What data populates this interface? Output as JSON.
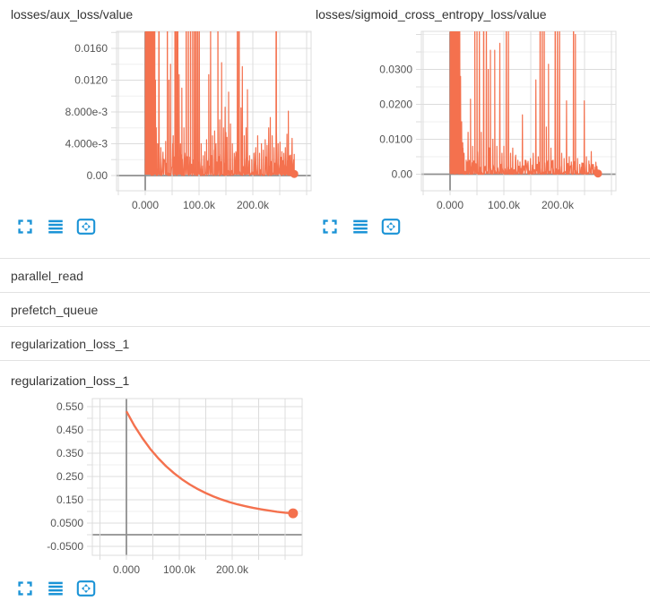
{
  "colors": {
    "line": "#f4714e",
    "icon": "#1a93d6",
    "grid_major": "#dcdcdc",
    "grid_minor": "#efefef",
    "axis_zero": "#8f8f8f",
    "tick_label": "#545454",
    "title": "#333333",
    "divider": "#e2e2e2"
  },
  "toolbar": {
    "buttons": [
      {
        "icon": "fullscreen-expand-icon"
      },
      {
        "icon": "runs-lines-icon"
      },
      {
        "icon": "fit-domain-to-data-icon"
      }
    ]
  },
  "sections": [
    {
      "label": "parallel_read",
      "state": "collapsed"
    },
    {
      "label": "prefetch_queue",
      "state": "collapsed"
    },
    {
      "label": "regularization_loss_1",
      "state": "expanded"
    }
  ],
  "chart_data": [
    {
      "type": "line",
      "title": "losses/aux_loss/value",
      "x_ticks": [
        {
          "v": 0,
          "label": "0.000"
        },
        {
          "v": 100000,
          "label": "100.0k"
        },
        {
          "v": 200000,
          "label": "200.0k"
        }
      ],
      "y_ticks": [
        {
          "v": 0,
          "label": "0.00"
        },
        {
          "v": 0.004,
          "label": "4.000e-3"
        },
        {
          "v": 0.008,
          "label": "8.000e-3"
        },
        {
          "v": 0.012,
          "label": "0.0120"
        },
        {
          "v": 0.016,
          "label": "0.0160"
        }
      ],
      "xlim": [
        -53333,
        308333
      ],
      "ylim": [
        -0.00192,
        0.01814
      ],
      "x_grid_step": 50000,
      "y_minor_step": 0.002,
      "grid": true,
      "legend": "none",
      "seed": 7,
      "noise_step": 1000,
      "noise_base": 0.003,
      "line_width": 1.2,
      "end_dot": {
        "x": 277000,
        "y": 0.0002,
        "r": 4.5
      },
      "spikes": [
        [
          800,
          0.19
        ],
        [
          1600,
          0.08
        ],
        [
          2600,
          0.22
        ],
        [
          3600,
          0.12
        ],
        [
          4800,
          0.3
        ],
        [
          6000,
          0.09
        ],
        [
          7200,
          0.25
        ],
        [
          8400,
          0.15
        ],
        [
          9600,
          0.28
        ],
        [
          10800,
          0.07
        ],
        [
          12000,
          0.18
        ],
        [
          13400,
          0.05
        ],
        [
          14800,
          0.1
        ],
        [
          16200,
          0.04
        ],
        [
          17600,
          0.028
        ],
        [
          19000,
          0.012
        ],
        [
          20500,
          0.006
        ],
        [
          23000,
          0.004
        ],
        [
          25500,
          0.04
        ],
        [
          29000,
          0.0035
        ],
        [
          34000,
          0.002
        ],
        [
          38000,
          0.0028
        ],
        [
          41000,
          0.035
        ],
        [
          44000,
          0.012
        ],
        [
          47000,
          0.014
        ],
        [
          52000,
          0.005
        ],
        [
          55500,
          0.08
        ],
        [
          58000,
          0.05
        ],
        [
          60500,
          0.024
        ],
        [
          63000,
          0.0127
        ],
        [
          65500,
          0.004
        ],
        [
          68000,
          0.011
        ],
        [
          72000,
          0.006
        ],
        [
          76000,
          0.05
        ],
        [
          80000,
          0.035
        ],
        [
          84000,
          0.09
        ],
        [
          88000,
          0.04
        ],
        [
          91500,
          0.06
        ],
        [
          94500,
          0.025
        ],
        [
          97500,
          0.03
        ],
        [
          100500,
          0.02
        ],
        [
          104000,
          0.004
        ],
        [
          108000,
          0.0025
        ],
        [
          111000,
          0.003
        ],
        [
          114000,
          0.0045
        ],
        [
          118000,
          0.0127
        ],
        [
          121500,
          0.019
        ],
        [
          125000,
          0.005
        ],
        [
          128500,
          0.0032
        ],
        [
          131500,
          0.004
        ],
        [
          135000,
          0.032
        ],
        [
          138500,
          0.007
        ],
        [
          142000,
          0.0142
        ],
        [
          145500,
          0.006
        ],
        [
          148500,
          0.0086
        ],
        [
          152000,
          0.0048
        ],
        [
          155000,
          0.0105
        ],
        [
          158500,
          0.0065
        ],
        [
          162000,
          0.004
        ],
        [
          165500,
          0.0028
        ],
        [
          168500,
          0.003
        ],
        [
          171500,
          0.065
        ],
        [
          174500,
          0.04
        ],
        [
          178000,
          0.0085
        ],
        [
          180500,
          0.0137
        ],
        [
          184000,
          0.005
        ],
        [
          187500,
          0.006
        ],
        [
          190000,
          0.0108
        ],
        [
          194000,
          0.0025
        ],
        [
          198000,
          0.002
        ],
        [
          202000,
          0.0028
        ],
        [
          205500,
          0.0035
        ],
        [
          209000,
          0.005
        ],
        [
          212500,
          0.0028
        ],
        [
          216000,
          0.004
        ],
        [
          219500,
          0.0032
        ],
        [
          223000,
          0.0045
        ],
        [
          226500,
          0.0038
        ],
        [
          229500,
          0.006
        ],
        [
          232500,
          0.0073
        ],
        [
          236000,
          0.005
        ],
        [
          239500,
          0.0035
        ],
        [
          243500,
          0.055
        ],
        [
          247000,
          0.004
        ],
        [
          250500,
          0.0042
        ],
        [
          254000,
          0.003
        ],
        [
          257500,
          0.0028
        ],
        [
          260500,
          0.0035
        ],
        [
          263500,
          0.0052
        ],
        [
          266000,
          0.0081
        ],
        [
          268500,
          0.0025
        ],
        [
          271000,
          0.0018
        ],
        [
          274000,
          0.001
        ],
        [
          277000,
          0.0002
        ]
      ]
    },
    {
      "type": "line",
      "title": "losses/sigmoid_cross_entropy_loss/value",
      "x_ticks": [
        {
          "v": 0,
          "label": "0.000"
        },
        {
          "v": 100000,
          "label": "100.0k"
        },
        {
          "v": 200000,
          "label": "200.0k"
        }
      ],
      "y_ticks": [
        {
          "v": 0,
          "label": "0.00"
        },
        {
          "v": 0.01,
          "label": "0.0100"
        },
        {
          "v": 0.02,
          "label": "0.0200"
        },
        {
          "v": 0.03,
          "label": "0.0300"
        }
      ],
      "xlim": [
        -53333,
        308333
      ],
      "ylim": [
        -0.004744,
        0.0409
      ],
      "x_grid_step": 50000,
      "y_minor_step": 0.005,
      "grid": true,
      "legend": "none",
      "seed": 13,
      "noise_step": 1000,
      "noise_base": 0.004,
      "line_width": 1.2,
      "end_dot": {
        "x": 275000,
        "y": 0.0002,
        "r": 4.5
      },
      "spikes": [
        [
          800,
          0.5
        ],
        [
          1800,
          0.2
        ],
        [
          2800,
          0.35
        ],
        [
          3800,
          0.15
        ],
        [
          5000,
          0.45
        ],
        [
          6400,
          0.12
        ],
        [
          7800,
          0.3
        ],
        [
          9200,
          0.18
        ],
        [
          10600,
          0.4
        ],
        [
          12000,
          0.09
        ],
        [
          13500,
          0.22
        ],
        [
          15000,
          0.06
        ],
        [
          16500,
          0.14
        ],
        [
          18000,
          0.045
        ],
        [
          19500,
          0.028
        ],
        [
          21500,
          0.015
        ],
        [
          23500,
          0.009
        ],
        [
          26000,
          0.006
        ],
        [
          30000,
          0.004
        ],
        [
          33500,
          0.012
        ],
        [
          38000,
          0.0215
        ],
        [
          42000,
          0.008
        ],
        [
          46000,
          0.05
        ],
        [
          50000,
          0.06
        ],
        [
          54500,
          0.045
        ],
        [
          58000,
          0.012
        ],
        [
          62500,
          0.07
        ],
        [
          67500,
          0.05
        ],
        [
          71000,
          0.03
        ],
        [
          75000,
          0.0355
        ],
        [
          79500,
          0.01
        ],
        [
          83000,
          0.0355
        ],
        [
          87000,
          0.008
        ],
        [
          92500,
          0.0375
        ],
        [
          96500,
          0.006
        ],
        [
          100000,
          0.008
        ],
        [
          104500,
          0.055
        ],
        [
          108500,
          0.045
        ],
        [
          112500,
          0.006
        ],
        [
          116500,
          0.0075
        ],
        [
          121500,
          0.005
        ],
        [
          126000,
          0.004
        ],
        [
          130000,
          0.0035
        ],
        [
          134500,
          0.017
        ],
        [
          139500,
          0.004
        ],
        [
          144500,
          0.0032
        ],
        [
          149500,
          0.0045
        ],
        [
          154500,
          0.006
        ],
        [
          159500,
          0.027
        ],
        [
          164000,
          0.005
        ],
        [
          167500,
          0.08
        ],
        [
          171500,
          0.05
        ],
        [
          175000,
          0.06
        ],
        [
          179000,
          0.0135
        ],
        [
          183000,
          0.0315
        ],
        [
          187500,
          0.0075
        ],
        [
          191500,
          0.004
        ],
        [
          195500,
          0.07
        ],
        [
          199500,
          0.045
        ],
        [
          203500,
          0.05
        ],
        [
          207500,
          0.006
        ],
        [
          212000,
          0.0045
        ],
        [
          216500,
          0.021
        ],
        [
          221500,
          0.005
        ],
        [
          225500,
          0.0035
        ],
        [
          229500,
          0.06
        ],
        [
          233000,
          0.04
        ],
        [
          237000,
          0.0045
        ],
        [
          241000,
          0.0028
        ],
        [
          245000,
          0.0032
        ],
        [
          249500,
          0.021
        ],
        [
          253500,
          0.005
        ],
        [
          258000,
          0.0038
        ],
        [
          262500,
          0.0065
        ],
        [
          266500,
          0.0028
        ],
        [
          270500,
          0.0015
        ],
        [
          275000,
          0.0002
        ]
      ]
    },
    {
      "type": "line",
      "title": "regularization_loss_1",
      "x_ticks": [
        {
          "v": 0,
          "label": "0.000"
        },
        {
          "v": 100000,
          "label": "100.0k"
        },
        {
          "v": 200000,
          "label": "200.0k"
        }
      ],
      "y_ticks": [
        {
          "v": -0.05,
          "label": "-0.0500"
        },
        {
          "v": 0.05,
          "label": "0.0500"
        },
        {
          "v": 0.15,
          "label": "0.150"
        },
        {
          "v": 0.25,
          "label": "0.250"
        },
        {
          "v": 0.35,
          "label": "0.350"
        },
        {
          "v": 0.45,
          "label": "0.450"
        },
        {
          "v": 0.55,
          "label": "0.550"
        }
      ],
      "xlim": [
        -64400,
        332200
      ],
      "ylim": [
        -0.0885,
        0.5846
      ],
      "x_grid_step": 50000,
      "y_minor_step": 0.05,
      "grid": true,
      "legend": "none",
      "line_width": 2.4,
      "end_dot": {
        "x": 315000,
        "y": 0.092,
        "r": 5.5
      },
      "points": [
        [
          0,
          0.53
        ],
        [
          15000,
          0.4685
        ],
        [
          30000,
          0.4152
        ],
        [
          45000,
          0.369
        ],
        [
          60000,
          0.3289
        ],
        [
          75000,
          0.2942
        ],
        [
          90000,
          0.2641
        ],
        [
          105000,
          0.238
        ],
        [
          120000,
          0.2153
        ],
        [
          135000,
          0.1957
        ],
        [
          150000,
          0.1787
        ],
        [
          165000,
          0.164
        ],
        [
          180000,
          0.1512
        ],
        [
          195000,
          0.1401
        ],
        [
          210000,
          0.1305
        ],
        [
          225000,
          0.1222
        ],
        [
          240000,
          0.115
        ],
        [
          255000,
          0.1087
        ],
        [
          270000,
          0.1033
        ],
        [
          285000,
          0.0986
        ],
        [
          300000,
          0.0945
        ],
        [
          315000,
          0.092
        ]
      ]
    }
  ]
}
